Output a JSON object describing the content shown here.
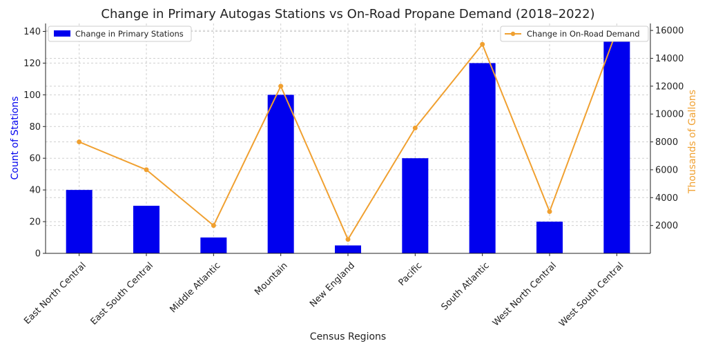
{
  "chart_data": {
    "type": "bar",
    "title": "Change in Primary Autogas Stations vs On-Road Propane Demand (2018–2022)",
    "xlabel": "Census Regions",
    "ylabel": "Count of Stations",
    "y2label": "Thousands of Gallons",
    "categories": [
      "East North Central",
      "East South Central",
      "Middle Atlantic",
      "Mountain",
      "New England",
      "Pacific",
      "South Atlantic",
      "West North Central",
      "West South Central"
    ],
    "ylim": [
      0,
      145
    ],
    "y2lim": [
      0,
      16500
    ],
    "yticks": [
      0,
      20,
      40,
      60,
      80,
      100,
      120,
      140
    ],
    "y2ticks": [
      2000,
      4000,
      6000,
      8000,
      10000,
      12000,
      14000,
      16000
    ],
    "grid": true,
    "series": [
      {
        "name": "Change in Primary Stations",
        "type": "bar",
        "axis": "left",
        "color": "#0000ee",
        "values": [
          40,
          30,
          10,
          100,
          5,
          60,
          120,
          20,
          140
        ]
      },
      {
        "name": "Change in On-Road Demand",
        "type": "line",
        "axis": "right",
        "color": "#f0a030",
        "values": [
          8000,
          6000,
          2000,
          12000,
          1000,
          9000,
          15000,
          3000,
          16000
        ]
      }
    ],
    "legend": {
      "bars_position": "top-left",
      "line_position": "top-right"
    },
    "colors": {
      "ylabel": "#0000ee",
      "y2label": "#f0a030"
    }
  }
}
